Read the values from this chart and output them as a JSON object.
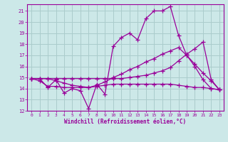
{
  "xlabel": "Windchill (Refroidissement éolien,°C)",
  "background_color": "#cce8e8",
  "line_color": "#990099",
  "grid_color": "#aacccc",
  "xlim": [
    -0.5,
    23.5
  ],
  "ylim": [
    12,
    21.6
  ],
  "xticks": [
    0,
    1,
    2,
    3,
    4,
    5,
    6,
    7,
    8,
    9,
    10,
    11,
    12,
    13,
    14,
    15,
    16,
    17,
    18,
    19,
    20,
    21,
    22,
    23
  ],
  "yticks": [
    12,
    13,
    14,
    15,
    16,
    17,
    18,
    19,
    20,
    21
  ],
  "series": [
    [
      14.9,
      14.9,
      14.1,
      14.8,
      13.6,
      14.0,
      13.8,
      12.2,
      14.4,
      13.5,
      17.8,
      18.6,
      19.0,
      18.4,
      20.3,
      21.0,
      21.0,
      21.4,
      18.8,
      17.0,
      16.0,
      14.8,
      14.0,
      13.9
    ],
    [
      14.9,
      14.9,
      14.9,
      14.9,
      14.9,
      14.9,
      14.9,
      14.9,
      14.9,
      14.9,
      14.9,
      14.9,
      15.0,
      15.1,
      15.2,
      15.4,
      15.6,
      15.9,
      16.5,
      17.1,
      17.6,
      18.2,
      14.8,
      13.9
    ],
    [
      14.9,
      14.7,
      14.2,
      14.2,
      14.1,
      14.1,
      14.1,
      14.1,
      14.2,
      14.3,
      14.4,
      14.4,
      14.4,
      14.4,
      14.4,
      14.4,
      14.4,
      14.4,
      14.3,
      14.2,
      14.1,
      14.1,
      14.0,
      13.9
    ],
    [
      14.9,
      14.9,
      14.9,
      14.7,
      14.5,
      14.3,
      14.2,
      14.1,
      14.3,
      14.6,
      15.0,
      15.3,
      15.7,
      16.0,
      16.4,
      16.7,
      17.1,
      17.4,
      17.7,
      17.0,
      16.2,
      15.4,
      14.7,
      13.9
    ]
  ]
}
